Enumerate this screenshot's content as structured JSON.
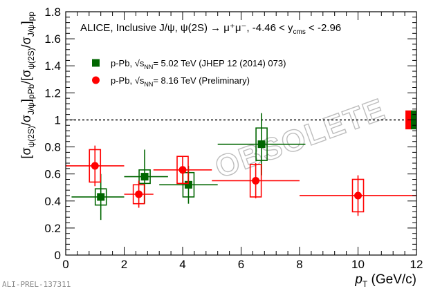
{
  "chart_data": {
    "type": "scatter",
    "header": "ALICE, Inclusive J/ψ, ψ(2S) → μ⁺μ⁻, -4.46 < y",
    "header_sub": "cms",
    "header_tail": " < -2.96",
    "xlabel": "p",
    "xlabel_sub": "T",
    "xlabel_unit": " (GeV/c)",
    "ylabel_parts": [
      "[σ",
      "ψ(2S)",
      "/σ",
      "J/ψ",
      "]",
      "pPb",
      "/[σ",
      "ψ(2S)",
      "/σ",
      "J/ψ",
      "]",
      "pp"
    ],
    "xlim": [
      0,
      12
    ],
    "ylim": [
      0,
      1.8
    ],
    "xticks": [
      "0",
      "2",
      "4",
      "6",
      "8",
      "10",
      "12"
    ],
    "yticks": [
      "0",
      "0.2",
      "0.4",
      "0.6",
      "0.8",
      "1",
      "1.2",
      "1.4",
      "1.6",
      "1.8"
    ],
    "reference_line": 1.0,
    "watermark": "OBSOLETE",
    "corner_label": "ALI-PREL-137311",
    "series": [
      {
        "name": "p-Pb, √s_NN = 5.02 TeV (JHEP 12 (2014) 073)",
        "legend_parts": [
          "p-Pb, ",
          "s",
          "NN",
          "= 5.02 TeV (JHEP 12 (2014) 073)"
        ],
        "color": "#006600",
        "marker": "square",
        "points": [
          {
            "x": 1.2,
            "y": 0.43,
            "xlo": 0.2,
            "xhi": 2.0,
            "stat": [
              0.17,
              0.17
            ],
            "sys": 0.06
          },
          {
            "x": 2.7,
            "y": 0.58,
            "xlo": 2.0,
            "xhi": 3.5,
            "stat": [
              0.2,
              0.2
            ],
            "sys": 0.05
          },
          {
            "x": 4.2,
            "y": 0.52,
            "xlo": 3.2,
            "xhi": 5.2,
            "stat": [
              0.14,
              0.14
            ],
            "sys": 0.09
          },
          {
            "x": 6.7,
            "y": 0.82,
            "xlo": 5.2,
            "xhi": 8.2,
            "stat": [
              0.23,
              0.23
            ],
            "sys": 0.12
          }
        ]
      },
      {
        "name": "p-Pb, √s_NN = 8.16 TeV (Preliminary)",
        "legend_parts": [
          "p-Pb, ",
          "s",
          "NN",
          "= 8.16 TeV (Preliminary)"
        ],
        "color": "#ff0000",
        "marker": "circle",
        "points": [
          {
            "x": 1.0,
            "y": 0.66,
            "xlo": 0.0,
            "xhi": 2.0,
            "stat": [
              0.15,
              0.15
            ],
            "sys": 0.12
          },
          {
            "x": 2.5,
            "y": 0.45,
            "xlo": 2.0,
            "xhi": 3.0,
            "stat": [
              0.1,
              0.1
            ],
            "sys": 0.07
          },
          {
            "x": 4.0,
            "y": 0.63,
            "xlo": 3.0,
            "xhi": 5.0,
            "stat": [
              0.1,
              0.1
            ],
            "sys": 0.1
          },
          {
            "x": 6.5,
            "y": 0.55,
            "xlo": 5.0,
            "xhi": 8.0,
            "stat": [
              0.13,
              0.13
            ],
            "sys": 0.12
          },
          {
            "x": 10.0,
            "y": 0.44,
            "xlo": 8.0,
            "xhi": 12.0,
            "stat": [
              0.15,
              0.15
            ],
            "sys": 0.12
          }
        ]
      }
    ],
    "global_uncertainty": {
      "y": 1.0,
      "colors": [
        "#ff0000",
        "#006600"
      ],
      "halfwidths": [
        0.07,
        0.07
      ]
    }
  }
}
